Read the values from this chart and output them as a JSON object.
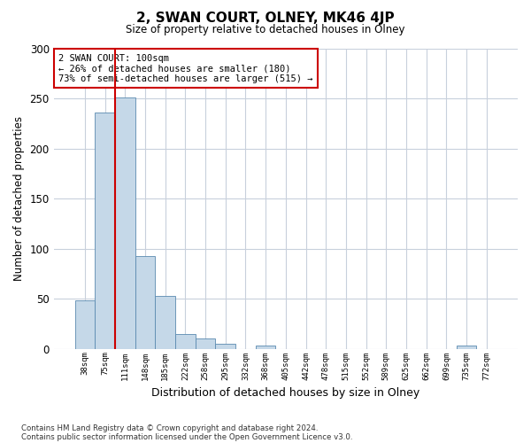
{
  "title": "2, SWAN COURT, OLNEY, MK46 4JP",
  "subtitle": "Size of property relative to detached houses in Olney",
  "xlabel": "Distribution of detached houses by size in Olney",
  "ylabel": "Number of detached properties",
  "bin_labels": [
    "38sqm",
    "75sqm",
    "111sqm",
    "148sqm",
    "185sqm",
    "222sqm",
    "258sqm",
    "295sqm",
    "332sqm",
    "368sqm",
    "405sqm",
    "442sqm",
    "478sqm",
    "515sqm",
    "552sqm",
    "589sqm",
    "625sqm",
    "662sqm",
    "699sqm",
    "735sqm",
    "772sqm"
  ],
  "bar_heights": [
    48,
    236,
    251,
    93,
    53,
    15,
    10,
    5,
    0,
    3,
    0,
    0,
    0,
    0,
    0,
    0,
    0,
    0,
    0,
    3,
    0
  ],
  "bar_color": "#c5d8e8",
  "bar_edge_color": "#5a8ab0",
  "vline_x_idx": 2,
  "vline_color": "#cc0000",
  "ylim": [
    0,
    300
  ],
  "yticks": [
    0,
    50,
    100,
    150,
    200,
    250,
    300
  ],
  "annotation_title": "2 SWAN COURT: 100sqm",
  "annotation_line1": "← 26% of detached houses are smaller (180)",
  "annotation_line2": "73% of semi-detached houses are larger (515) →",
  "annotation_box_color": "#cc0000",
  "footer_line1": "Contains HM Land Registry data © Crown copyright and database right 2024.",
  "footer_line2": "Contains public sector information licensed under the Open Government Licence v3.0.",
  "bg_color": "#ffffff",
  "grid_color": "#c8d0dc"
}
